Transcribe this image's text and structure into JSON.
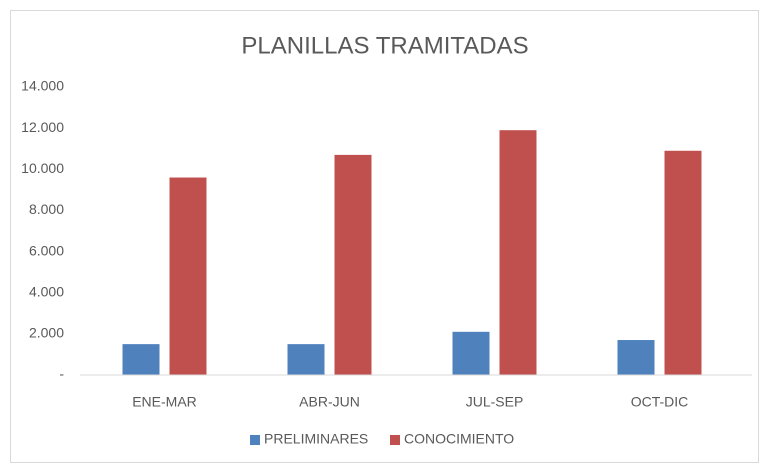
{
  "chart_data": {
    "type": "bar",
    "title": "PLANILLAS TRAMITADAS",
    "categories": [
      "ENE-MAR",
      "ABR-JUN",
      "JUL-SEP",
      "OCT-DIC"
    ],
    "series": [
      {
        "name": "PRELIMINARES",
        "color": "#4f81bd",
        "values": [
          1500,
          1500,
          2100,
          1700
        ]
      },
      {
        "name": "CONOCIMIENTO",
        "color": "#c0504d",
        "values": [
          9600,
          10700,
          11900,
          10900
        ]
      }
    ],
    "ylim": [
      0,
      14000
    ],
    "yticks": [
      {
        "value": 0,
        "label": "-"
      },
      {
        "value": 2000,
        "label": "2.000"
      },
      {
        "value": 4000,
        "label": "4.000"
      },
      {
        "value": 6000,
        "label": "6.000"
      },
      {
        "value": 8000,
        "label": "8.000"
      },
      {
        "value": 10000,
        "label": "10.000"
      },
      {
        "value": 12000,
        "label": "12.000"
      },
      {
        "value": 14000,
        "label": "14.000"
      }
    ],
    "grid": false,
    "legend": "bottom"
  }
}
